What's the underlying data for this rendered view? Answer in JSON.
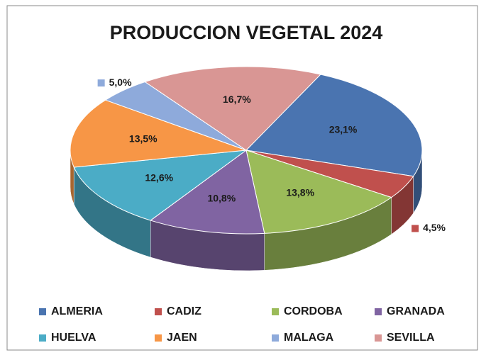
{
  "chart_data": {
    "type": "pie",
    "title": "PRODUCCION VEGETAL 2024",
    "categories": [
      "ALMERIA",
      "CADIZ",
      "CORDOBA",
      "GRANADA",
      "HUELVA",
      "JAEN",
      "MALAGA",
      "SEVILLA"
    ],
    "values": [
      23.1,
      4.5,
      13.8,
      10.8,
      12.6,
      13.5,
      5.0,
      16.7
    ],
    "value_labels": [
      "23,1%",
      "4,5%",
      "13,8%",
      "10,8%",
      "12,6%",
      "13,5%",
      "5,0%",
      "16,7%"
    ],
    "colors": [
      "#4a74b0",
      "#c0504d",
      "#9bbb59",
      "#8064a2",
      "#4bacc6",
      "#f79646",
      "#8eaadb",
      "#d99694"
    ],
    "legend": "bottom"
  }
}
